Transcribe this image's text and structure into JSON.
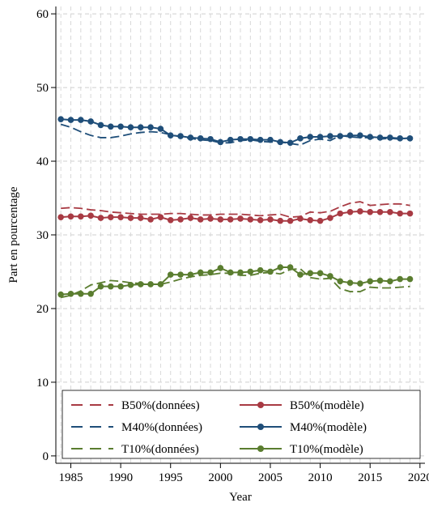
{
  "chart_data": {
    "type": "line",
    "title": "",
    "xlabel": "Year",
    "ylabel": "Part en pourcentage",
    "xlim": [
      1983.5,
      2020.5
    ],
    "ylim": [
      -1,
      61
    ],
    "xticks": [
      1985,
      1990,
      1995,
      2000,
      2005,
      2010,
      2015,
      2020
    ],
    "yticks": [
      0,
      10,
      20,
      30,
      40,
      50,
      60
    ],
    "grid": true,
    "legend_position": "bottom",
    "x": [
      1984,
      1985,
      1986,
      1987,
      1988,
      1989,
      1990,
      1991,
      1992,
      1993,
      1994,
      1995,
      1996,
      1997,
      1998,
      1999,
      2000,
      2001,
      2002,
      2003,
      2004,
      2005,
      2006,
      2007,
      2008,
      2009,
      2010,
      2011,
      2012,
      2013,
      2014,
      2015,
      2016,
      2017,
      2018,
      2019
    ],
    "series": [
      {
        "name": "B50%(données)",
        "style": "dashed",
        "color": "#a83a43",
        "values": [
          33.6,
          33.7,
          33.6,
          33.4,
          33.3,
          33.1,
          33.0,
          32.9,
          32.8,
          32.8,
          32.8,
          32.9,
          32.9,
          32.8,
          32.7,
          32.7,
          32.8,
          32.8,
          32.8,
          32.7,
          32.6,
          32.7,
          32.8,
          32.4,
          32.5,
          33.1,
          33.0,
          33.2,
          33.8,
          34.3,
          34.5,
          34.0,
          34.1,
          34.2,
          34.2,
          34.0
        ]
      },
      {
        "name": "M40%(données)",
        "style": "dashed",
        "color": "#1f4e79",
        "values": [
          45.0,
          44.6,
          44.0,
          43.5,
          43.2,
          43.2,
          43.4,
          43.7,
          43.9,
          44.0,
          43.9,
          43.6,
          43.3,
          43.1,
          42.9,
          42.8,
          42.5,
          42.5,
          42.8,
          42.9,
          42.7,
          42.6,
          42.6,
          42.4,
          42.2,
          42.8,
          43.0,
          42.8,
          43.5,
          43.3,
          43.2,
          43.2,
          43.0,
          43.1,
          43.0,
          43.2
        ]
      },
      {
        "name": "T10%(données)",
        "style": "dashed",
        "color": "#5a7d2f",
        "values": [
          21.5,
          21.8,
          22.4,
          23.2,
          23.5,
          23.8,
          23.7,
          23.5,
          23.4,
          23.3,
          23.3,
          23.6,
          24.0,
          24.3,
          24.5,
          24.6,
          24.8,
          24.8,
          24.5,
          24.5,
          24.8,
          24.9,
          24.7,
          25.3,
          25.4,
          24.2,
          24.0,
          24.1,
          22.7,
          22.3,
          22.3,
          22.9,
          22.8,
          22.8,
          22.9,
          23.0
        ]
      },
      {
        "name": "B50%(modèle)",
        "style": "solid-marker",
        "color": "#a83a43",
        "values": [
          32.4,
          32.5,
          32.5,
          32.6,
          32.3,
          32.4,
          32.4,
          32.3,
          32.3,
          32.1,
          32.4,
          32.0,
          32.1,
          32.3,
          32.1,
          32.2,
          32.1,
          32.1,
          32.2,
          32.1,
          32.0,
          32.1,
          31.9,
          31.9,
          32.2,
          32.0,
          31.9,
          32.3,
          32.9,
          33.1,
          33.2,
          33.1,
          33.1,
          33.1,
          32.9,
          32.9
        ]
      },
      {
        "name": "M40%(modèle)",
        "style": "solid-marker",
        "color": "#1f4e79",
        "values": [
          45.7,
          45.6,
          45.6,
          45.4,
          44.9,
          44.7,
          44.7,
          44.6,
          44.6,
          44.6,
          44.4,
          43.5,
          43.4,
          43.2,
          43.1,
          43.0,
          42.6,
          42.9,
          43.0,
          43.0,
          42.9,
          42.9,
          42.6,
          42.5,
          43.1,
          43.3,
          43.3,
          43.4,
          43.4,
          43.5,
          43.5,
          43.3,
          43.2,
          43.2,
          43.1,
          43.1
        ]
      },
      {
        "name": "T10%(modèle)",
        "style": "solid-marker",
        "color": "#5a7d2f",
        "values": [
          21.9,
          22.0,
          22.0,
          22.0,
          23.0,
          23.0,
          23.0,
          23.2,
          23.3,
          23.3,
          23.3,
          24.6,
          24.6,
          24.6,
          24.9,
          24.9,
          25.5,
          24.9,
          24.9,
          25.0,
          25.2,
          25.0,
          25.6,
          25.6,
          24.6,
          24.8,
          24.8,
          24.4,
          23.7,
          23.5,
          23.4,
          23.7,
          23.8,
          23.7,
          24.0,
          24.0
        ]
      }
    ]
  }
}
